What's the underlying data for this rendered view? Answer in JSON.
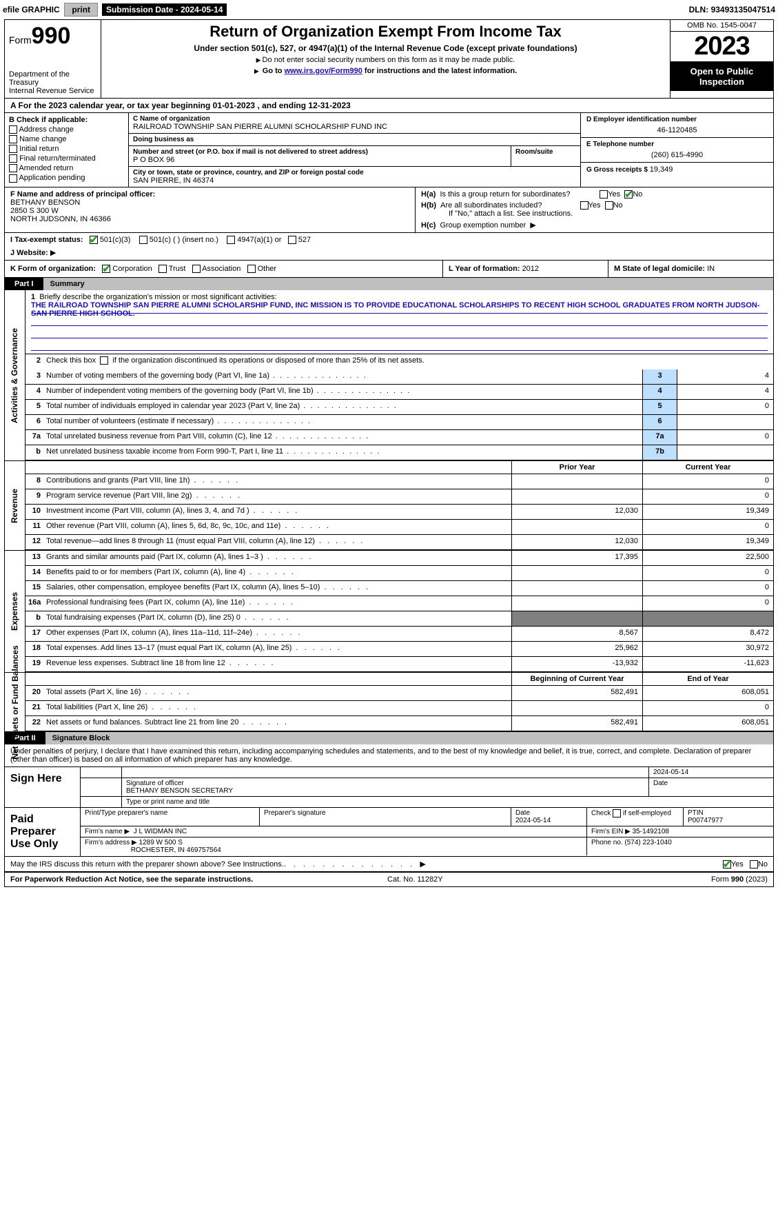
{
  "topbar": {
    "efile": "efile GRAPHIC",
    "print": "print",
    "submission_label": "Submission Date - ",
    "submission_date": "2024-05-14",
    "dln_label": "DLN: ",
    "dln": "93493135047514"
  },
  "header": {
    "form_label": "Form",
    "form_number": "990",
    "dept": "Department of the Treasury\nInternal Revenue Service",
    "title": "Return of Organization Exempt From Income Tax",
    "sub1": "Under section 501(c), 527, or 4947(a)(1) of the Internal Revenue Code (except private foundations)",
    "sub2": "Do not enter social security numbers on this form as it may be made public.",
    "sub3_pre": "Go to ",
    "sub3_link": "www.irs.gov/Form990",
    "sub3_post": " for instructions and the latest information.",
    "omb": "OMB No. 1545-0047",
    "year": "2023",
    "public": "Open to Public Inspection"
  },
  "rowA": {
    "text_pre": "A For the 2023 calendar year, or tax year beginning ",
    "begin": "01-01-2023",
    "mid": " , and ending ",
    "end": "12-31-2023"
  },
  "boxB": {
    "header": "B Check if applicable:",
    "items": [
      "Address change",
      "Name change",
      "Initial return",
      "Final return/terminated",
      "Amended return",
      "Application pending"
    ]
  },
  "boxC": {
    "name_label": "C Name of organization",
    "name": "RAILROAD TOWNSHIP SAN PIERRE ALUMNI SCHOLARSHIP FUND INC",
    "dba_label": "Doing business as",
    "dba": "",
    "street_label": "Number and street (or P.O. box if mail is not delivered to street address)",
    "room_label": "Room/suite",
    "street": "P O BOX 96",
    "city_label": "City or town, state or province, country, and ZIP or foreign postal code",
    "city": "SAN PIERRE, IN  46374"
  },
  "boxD": {
    "ein_label": "D Employer identification number",
    "ein": "46-1120485",
    "phone_label": "E Telephone number",
    "phone": "(260) 615-4990",
    "gross_label": "G Gross receipts $ ",
    "gross": "19,349"
  },
  "rowF": {
    "label": "F Name and address of principal officer:",
    "name": "BETHANY BENSON",
    "addr1": "2850 S 300 W",
    "addr2": "NORTH JUDSONN, IN  46366"
  },
  "rowH": {
    "ha": "H(a)  Is this a group return for subordinates?",
    "hb": "H(b)  Are all subordinates included?",
    "hb_note": "If \"No,\" attach a list. See instructions.",
    "hc": "H(c)  Group exemption number  ",
    "yes": "Yes",
    "no": "No"
  },
  "rowI": {
    "label": "I  Tax-exempt status:",
    "opts": [
      "501(c)(3)",
      "501(c) (  ) (insert no.)",
      "4947(a)(1) or",
      "527"
    ]
  },
  "rowJ": {
    "label": "J  Website: ",
    "arrow": "▶"
  },
  "rowK": {
    "label": "K Form of organization:",
    "opts": [
      "Corporation",
      "Trust",
      "Association",
      "Other"
    ]
  },
  "rowL": {
    "label": "L Year of formation: ",
    "val": "2012"
  },
  "rowM": {
    "label": "M State of legal domicile: ",
    "val": "IN"
  },
  "part1": {
    "number": "Part I",
    "title": "Summary"
  },
  "summary": {
    "sec1_label": "Activities & Governance",
    "line1_label": "Briefly describe the organization's mission or most significant activities:",
    "mission": "THE RAILROAD TOWNSHIP SAN PIERRE ALUMNI SCHOLARSHIP FUND, INC MISSION IS TO PROVIDE EDUCATIONAL SCHOLARSHIPS TO RECENT HIGH SCHOOL GRADUATES FROM NORTH JUDSON-SAN PIERRE HIGH SCHOOL.",
    "line2": "Check this box      if the organization discontinued its operations or disposed of more than 25% of its net assets.",
    "rows_gov": [
      {
        "n": "3",
        "t": "Number of voting members of the governing body (Part VI, line 1a)",
        "box": "3",
        "v": "4"
      },
      {
        "n": "4",
        "t": "Number of independent voting members of the governing body (Part VI, line 1b)",
        "box": "4",
        "v": "4"
      },
      {
        "n": "5",
        "t": "Total number of individuals employed in calendar year 2023 (Part V, line 2a)",
        "box": "5",
        "v": "0"
      },
      {
        "n": "6",
        "t": "Total number of volunteers (estimate if necessary)",
        "box": "6",
        "v": ""
      },
      {
        "n": "7a",
        "t": "Total unrelated business revenue from Part VIII, column (C), line 12",
        "box": "7a",
        "v": "0"
      },
      {
        "n": "b",
        "t": "Net unrelated business taxable income from Form 990-T, Part I, line 11",
        "box": "7b",
        "v": ""
      }
    ],
    "sec2_label": "Revenue",
    "hdr_prior": "Prior Year",
    "hdr_current": "Current Year",
    "rows_rev": [
      {
        "n": "8",
        "t": "Contributions and grants (Part VIII, line 1h)",
        "c1": "",
        "c2": "0"
      },
      {
        "n": "9",
        "t": "Program service revenue (Part VIII, line 2g)",
        "c1": "",
        "c2": "0"
      },
      {
        "n": "10",
        "t": "Investment income (Part VIII, column (A), lines 3, 4, and 7d )",
        "c1": "12,030",
        "c2": "19,349"
      },
      {
        "n": "11",
        "t": "Other revenue (Part VIII, column (A), lines 5, 6d, 8c, 9c, 10c, and 11e)",
        "c1": "",
        "c2": "0"
      },
      {
        "n": "12",
        "t": "Total revenue—add lines 8 through 11 (must equal Part VIII, column (A), line 12)",
        "c1": "12,030",
        "c2": "19,349"
      }
    ],
    "sec3_label": "Expenses",
    "rows_exp": [
      {
        "n": "13",
        "t": "Grants and similar amounts paid (Part IX, column (A), lines 1–3 )",
        "c1": "17,395",
        "c2": "22,500"
      },
      {
        "n": "14",
        "t": "Benefits paid to or for members (Part IX, column (A), line 4)",
        "c1": "",
        "c2": "0"
      },
      {
        "n": "15",
        "t": "Salaries, other compensation, employee benefits (Part IX, column (A), lines 5–10)",
        "c1": "",
        "c2": "0"
      },
      {
        "n": "16a",
        "t": "Professional fundraising fees (Part IX, column (A), line 11e)",
        "c1": "",
        "c2": "0"
      },
      {
        "n": "b",
        "t": "Total fundraising expenses (Part IX, column (D), line 25) 0",
        "c1": "grey",
        "c2": "grey"
      },
      {
        "n": "17",
        "t": "Other expenses (Part IX, column (A), lines 11a–11d, 11f–24e)",
        "c1": "8,567",
        "c2": "8,472"
      },
      {
        "n": "18",
        "t": "Total expenses. Add lines 13–17 (must equal Part IX, column (A), line 25)",
        "c1": "25,962",
        "c2": "30,972"
      },
      {
        "n": "19",
        "t": "Revenue less expenses. Subtract line 18 from line 12",
        "c1": "-13,932",
        "c2": "-11,623"
      }
    ],
    "sec4_label": "Net Assets or Fund Balances",
    "hdr_begin": "Beginning of Current Year",
    "hdr_end": "End of Year",
    "rows_net": [
      {
        "n": "20",
        "t": "Total assets (Part X, line 16)",
        "c1": "582,491",
        "c2": "608,051"
      },
      {
        "n": "21",
        "t": "Total liabilities (Part X, line 26)",
        "c1": "",
        "c2": "0"
      },
      {
        "n": "22",
        "t": "Net assets or fund balances. Subtract line 21 from line 20",
        "c1": "582,491",
        "c2": "608,051"
      }
    ]
  },
  "part2": {
    "number": "Part II",
    "title": "Signature Block"
  },
  "sig": {
    "declaration": "Under penalties of perjury, I declare that I have examined this return, including accompanying schedules and statements, and to the best of my knowledge and belief, it is true, correct, and complete. Declaration of preparer (other than officer) is based on all information of which preparer has any knowledge.",
    "sign_here": "Sign Here",
    "sig_officer_lbl": "Signature of officer",
    "officer": "BETHANY BENSON SECRETARY",
    "type_lbl": "Type or print name and title",
    "date_lbl": "Date",
    "date": "2024-05-14",
    "paid_label": "Paid Preparer Use Only",
    "prep_name_lbl": "Print/Type preparer's name",
    "prep_sig_lbl": "Preparer's signature",
    "prep_date_lbl": "Date",
    "prep_date": "2024-05-14",
    "check_lbl": "Check        if self-employed",
    "ptin_lbl": "PTIN",
    "ptin": "P00747977",
    "firm_name_lbl": "Firm's name   ",
    "firm_name": "J L WIDMAN INC",
    "firm_ein_lbl": "Firm's EIN  ",
    "firm_ein": "35-1492108",
    "firm_addr_lbl": "Firm's address ",
    "firm_addr": "1289 W 500 S",
    "firm_city": "ROCHESTER, IN  469757564",
    "phone_lbl": "Phone no. ",
    "phone": "(574) 223-1040"
  },
  "footer": {
    "discuss": "May the IRS discuss this return with the preparer shown above? See Instructions.",
    "yes": "Yes",
    "no": "No",
    "paperwork": "For Paperwork Reduction Act Notice, see the separate instructions.",
    "cat": "Cat. No. 11282Y",
    "formno": "Form 990 (2023)"
  },
  "colors": {
    "link": "#1a0dab",
    "box_blue": "#bfdfff",
    "grey_cell": "#808080",
    "check_green": "#2aa02a"
  }
}
